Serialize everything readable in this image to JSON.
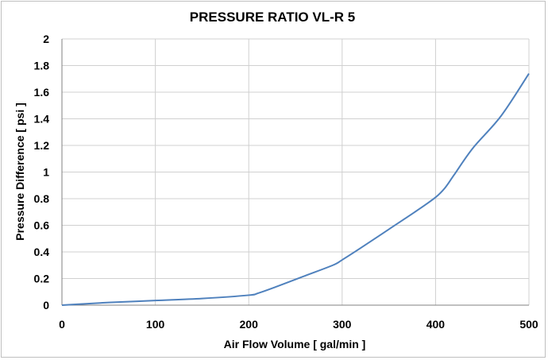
{
  "chart_data": {
    "type": "line",
    "title": "PRESSURE RATIO  VL-R 5",
    "xlabel": "Air Flow Volume  [ gal/min ]",
    "ylabel": "Pressure Difference  [ psi ]",
    "xlim": [
      0,
      500
    ],
    "ylim": [
      0,
      2
    ],
    "x_ticks": [
      "0",
      "100",
      "200",
      "300",
      "400",
      "500"
    ],
    "y_ticks": [
      "0",
      "0.2",
      "0.4",
      "0.6",
      "0.8",
      "1",
      "1.2",
      "1.4",
      "1.6",
      "1.8",
      "2"
    ],
    "grid": true,
    "legend": "none",
    "series": [
      {
        "color": "#4f81bd",
        "x": [
          0,
          50,
          100,
          150,
          200,
          210,
          230,
          260,
          290,
          300,
          320,
          350,
          380,
          400,
          410,
          420,
          440,
          470,
          500
        ],
        "y": [
          0,
          0.02,
          0.035,
          0.05,
          0.075,
          0.09,
          0.14,
          0.22,
          0.3,
          0.34,
          0.43,
          0.57,
          0.71,
          0.81,
          0.88,
          0.98,
          1.18,
          1.42,
          1.74
        ]
      }
    ]
  }
}
